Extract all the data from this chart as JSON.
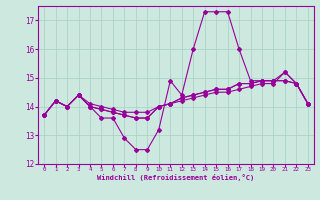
{
  "xlabel": "Windchill (Refroidissement éolien,°C)",
  "bg_color": "#cce8df",
  "line_color": "#990099",
  "grid_color": "#aad4c8",
  "x_hours": [
    0,
    1,
    2,
    3,
    4,
    5,
    6,
    7,
    8,
    9,
    10,
    11,
    12,
    13,
    14,
    15,
    16,
    17,
    18,
    19,
    20,
    21,
    22,
    23
  ],
  "line1": [
    13.7,
    14.2,
    14.0,
    14.4,
    14.0,
    13.6,
    13.6,
    12.9,
    12.5,
    12.5,
    13.2,
    14.9,
    14.4,
    16.0,
    17.3,
    17.3,
    17.3,
    16.0,
    14.9,
    14.9,
    14.9,
    15.2,
    14.8,
    14.1
  ],
  "line2": [
    13.7,
    14.2,
    14.0,
    14.4,
    14.0,
    13.9,
    13.8,
    13.7,
    13.6,
    13.6,
    14.0,
    14.1,
    14.3,
    14.4,
    14.5,
    14.6,
    14.6,
    14.8,
    14.8,
    14.9,
    14.9,
    14.9,
    14.8,
    14.1
  ],
  "line3": [
    13.7,
    14.2,
    14.0,
    14.4,
    14.0,
    13.9,
    13.8,
    13.7,
    13.6,
    13.6,
    14.0,
    14.1,
    14.3,
    14.4,
    14.5,
    14.6,
    14.6,
    14.8,
    14.8,
    14.9,
    14.9,
    14.9,
    14.8,
    14.1
  ],
  "line4": [
    13.7,
    14.2,
    14.0,
    14.4,
    14.1,
    14.0,
    13.9,
    13.8,
    13.8,
    13.8,
    14.0,
    14.1,
    14.2,
    14.3,
    14.4,
    14.5,
    14.5,
    14.6,
    14.7,
    14.8,
    14.8,
    15.2,
    14.8,
    14.1
  ],
  "ylim": [
    12.0,
    17.5
  ],
  "yticks": [
    12,
    13,
    14,
    15,
    16,
    17
  ],
  "xlim": [
    -0.5,
    23.5
  ]
}
